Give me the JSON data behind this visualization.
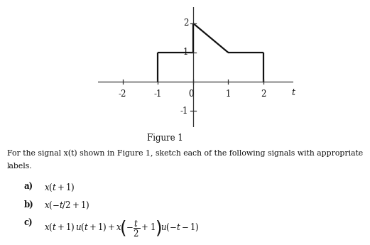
{
  "xlim": [
    -2.7,
    2.85
  ],
  "ylim": [
    -1.55,
    2.55
  ],
  "xticks": [
    -2,
    -1,
    0,
    1,
    2
  ],
  "yticks": [
    -1,
    1,
    2
  ],
  "ytick_labels": [
    "-1",
    "1",
    "2"
  ],
  "xtick_labels": [
    "-2",
    "-1",
    "0",
    "1",
    "2"
  ],
  "line_color": "#111111",
  "line_width": 1.6,
  "background_color": "#ffffff",
  "figure1_label": "Figure 1",
  "body_line1": "For the signal x(t) shown in Figure 1, sketch each of the following signals with appropriate",
  "body_line2": "labels."
}
